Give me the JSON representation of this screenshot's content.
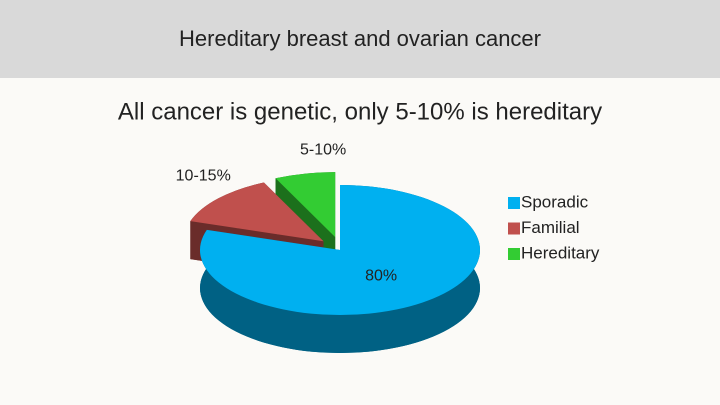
{
  "chart_data": {
    "type": "pie",
    "title": "Hereditary breast and ovarian cancer",
    "subtitle": "All cancer is genetic, only 5-10% is hereditary",
    "categories": [
      "Sporadic",
      "Familial",
      "Hereditary"
    ],
    "values": [
      80,
      13,
      7
    ],
    "value_labels": [
      "80%",
      "10-15%",
      "5-10%"
    ],
    "colors": [
      "#00b0f0",
      "#c0504d",
      "#33cc33"
    ],
    "legend": "right"
  }
}
